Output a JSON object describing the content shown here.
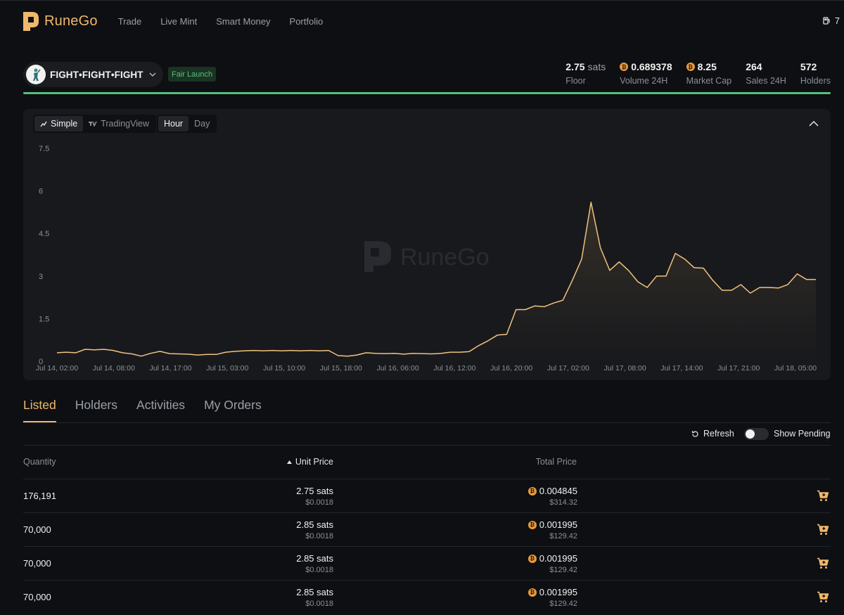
{
  "app": {
    "brand": "RuneGo",
    "watermark": "RuneGo"
  },
  "nav": {
    "items": [
      "Trade",
      "Live Mint",
      "Smart Money",
      "Portfolio"
    ]
  },
  "wallet": {
    "count": "7",
    "icon": "gas-pump-icon"
  },
  "token": {
    "name": "FIGHT•FIGHT•FIGHT",
    "badge": "Fair Launch",
    "progress_pct": 100
  },
  "stats": [
    {
      "value": "2.75",
      "unit": "sats",
      "label": "Floor",
      "coin": false
    },
    {
      "value": "0.689378",
      "unit": "",
      "label": "Volume 24H",
      "coin": true
    },
    {
      "value": "8.25",
      "unit": "",
      "label": "Market Cap",
      "coin": true
    },
    {
      "value": "264",
      "unit": "",
      "label": "Sales 24H",
      "coin": false
    },
    {
      "value": "572",
      "unit": "",
      "label": "Holders",
      "coin": false
    }
  ],
  "chart_controls": {
    "view": [
      "Simple",
      "TradingView"
    ],
    "interval": [
      "Hour",
      "Day"
    ],
    "active_view": "Simple",
    "active_interval": "Hour"
  },
  "colors": {
    "accent": "#f0b86a",
    "line": "#f0c27e",
    "green": "#57c07a",
    "bitcoin": "#e99a3c"
  },
  "chart_data": {
    "type": "line",
    "ylim": [
      0,
      7.5
    ],
    "y_ticks": [
      "7.5",
      "6",
      "4.5",
      "3",
      "1.5",
      "0"
    ],
    "x_tick_labels": [
      "Jul 14, 02:00",
      "Jul 14, 08:00",
      "Jul 14, 17:00",
      "Jul 15, 03:00",
      "Jul 15, 10:00",
      "Jul 15, 18:00",
      "Jul 16, 06:00",
      "Jul 16, 12:00",
      "Jul 16, 20:00",
      "Jul 17, 02:00",
      "Jul 17, 08:00",
      "Jul 17, 14:00",
      "Jul 17, 21:00",
      "Jul 18, 05:00"
    ],
    "values": [
      0.3,
      0.32,
      0.3,
      0.42,
      0.4,
      0.42,
      0.38,
      0.3,
      0.26,
      0.18,
      0.28,
      0.35,
      0.27,
      0.26,
      0.25,
      0.22,
      0.24,
      0.24,
      0.32,
      0.35,
      0.37,
      0.38,
      0.37,
      0.38,
      0.37,
      0.38,
      0.37,
      0.38,
      0.37,
      0.38,
      0.2,
      0.18,
      0.22,
      0.3,
      0.28,
      0.27,
      0.28,
      0.25,
      0.28,
      0.27,
      0.26,
      0.28,
      0.32,
      0.32,
      0.34,
      0.55,
      0.72,
      0.92,
      0.95,
      1.82,
      1.82,
      1.95,
      1.92,
      2.05,
      2.15,
      2.85,
      3.6,
      5.6,
      4.0,
      3.2,
      3.5,
      3.2,
      2.8,
      2.6,
      3.0,
      3.0,
      3.8,
      3.6,
      3.3,
      3.28,
      2.85,
      2.5,
      2.5,
      2.7,
      2.4,
      2.6,
      2.6,
      2.58,
      2.7,
      3.08,
      2.88,
      2.88
    ]
  },
  "tabs": [
    "Listed",
    "Holders",
    "Activities",
    "My Orders"
  ],
  "list_controls": {
    "refresh": "Refresh",
    "show_pending": "Show Pending"
  },
  "table": {
    "headers": {
      "quantity": "Quantity",
      "unit_price": "Unit Price",
      "total_price": "Total Price"
    },
    "rows": [
      {
        "qty": "176,191",
        "price": "2.75 sats",
        "price_usd": "$0.0018",
        "total": "0.004845",
        "total_usd": "$314.32"
      },
      {
        "qty": "70,000",
        "price": "2.85 sats",
        "price_usd": "$0.0018",
        "total": "0.001995",
        "total_usd": "$129.42"
      },
      {
        "qty": "70,000",
        "price": "2.85 sats",
        "price_usd": "$0.0018",
        "total": "0.001995",
        "total_usd": "$129.42"
      },
      {
        "qty": "70,000",
        "price": "2.85 sats",
        "price_usd": "$0.0018",
        "total": "0.001995",
        "total_usd": "$129.42"
      }
    ]
  }
}
